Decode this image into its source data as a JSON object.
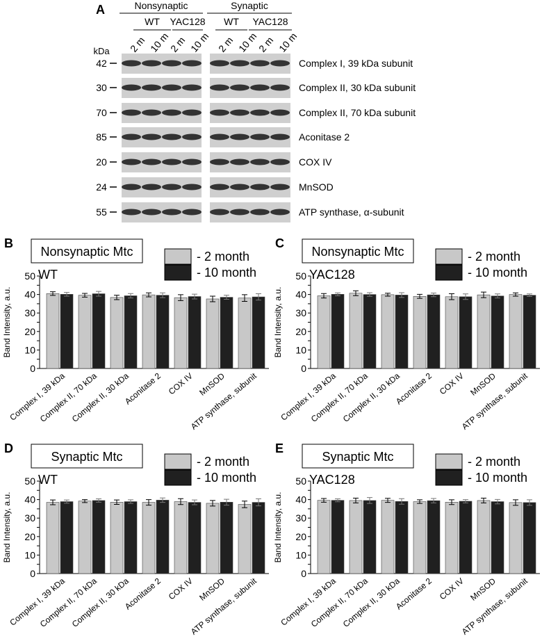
{
  "blot": {
    "panel": "A",
    "groups": [
      "Nonsynaptic",
      "Synaptic"
    ],
    "strains": [
      "WT",
      "YAC128",
      "WT",
      "YAC128"
    ],
    "lanes": [
      "2 m",
      "10 m",
      "2 m",
      "10 m",
      "2 m",
      "10 m",
      "2 m",
      "10 m"
    ],
    "kda_label": "kDa",
    "markers": [
      "42",
      "30",
      "70",
      "85",
      "20",
      "24",
      "55"
    ],
    "proteins": [
      "Complex I, 39 kDa subunit",
      "Complex II, 30 kDa subunit",
      "Complex II, 70 kDa subunit",
      "Aconitase 2",
      "COX IV",
      "MnSOD",
      "ATP synthase, α-subunit"
    ]
  },
  "chart_data": [
    {
      "type": "bar",
      "panel": "B",
      "title": "Nonsynaptic Mtc",
      "subtitle": "WT",
      "ylabel": "Band Intensity, a.u.",
      "categories": [
        "Complex I, 39 kDa",
        "Complex II, 70 kDa",
        "Complex II, 30 kDa",
        "Aconitase 2",
        "COX IV",
        "MnSOD",
        "ATP synthase, subunit"
      ],
      "series": [
        {
          "name": "- 2 month",
          "color": "#c8c8c8",
          "values": [
            40.5,
            39.6,
            38.4,
            39.8,
            38.3,
            37.6,
            38.1
          ],
          "errors": [
            1.0,
            1.0,
            1.2,
            1.1,
            1.6,
            1.5,
            1.8
          ]
        },
        {
          "name": "- 10 month",
          "color": "#202020",
          "values": [
            40.1,
            40.4,
            39.3,
            39.6,
            38.9,
            38.5,
            38.7
          ],
          "errors": [
            1.0,
            1.3,
            1.2,
            1.3,
            1.3,
            1.1,
            1.7
          ]
        }
      ],
      "ylim": [
        0,
        50
      ],
      "yticks": [
        0,
        5,
        10,
        15,
        20,
        25,
        30,
        35,
        40,
        45,
        50
      ]
    },
    {
      "type": "bar",
      "panel": "C",
      "title": "Nonsynaptic Mtc",
      "subtitle": "YAC128",
      "ylabel": "Band Intensity, a.u.",
      "categories": [
        "Complex I, 39 kDa",
        "Complex II, 70 kDa",
        "Complex II, 30 kDa",
        "Aconitase 2",
        "COX IV",
        "MnSOD",
        "ATP synthase, subunit"
      ],
      "series": [
        {
          "name": "- 2 month",
          "color": "#c8c8c8",
          "values": [
            39.3,
            40.7,
            39.9,
            39.0,
            38.8,
            39.8,
            40.0
          ],
          "errors": [
            1.2,
            1.3,
            0.8,
            1.1,
            1.6,
            1.5,
            0.9
          ]
        },
        {
          "name": "- 10 month",
          "color": "#202020",
          "values": [
            40.1,
            40.0,
            39.7,
            39.8,
            38.8,
            39.2,
            39.6
          ],
          "errors": [
            0.8,
            1.0,
            1.3,
            1.0,
            1.5,
            1.1,
            0.7
          ]
        }
      ],
      "ylim": [
        0,
        50
      ],
      "yticks": [
        0,
        5,
        10,
        15,
        20,
        25,
        30,
        35,
        40,
        45,
        50
      ]
    },
    {
      "type": "bar",
      "panel": "D",
      "title": "Synaptic Mtc",
      "subtitle": "WT",
      "ylabel": "Band Intensity, a.u.",
      "categories": [
        "Complex I, 39 kDa",
        "Complex II, 70 kDa",
        "Complex II, 30 kDa",
        "Aconitase 2",
        "COX IV",
        "MnSOD",
        "ATP synthase, subunit"
      ],
      "series": [
        {
          "name": "- 2 month",
          "color": "#c8c8c8",
          "values": [
            38.5,
            39.2,
            38.6,
            38.5,
            38.9,
            38.0,
            37.4
          ],
          "errors": [
            1.3,
            0.8,
            1.2,
            1.5,
            1.6,
            1.5,
            1.8
          ]
        },
        {
          "name": "- 10 month",
          "color": "#202020",
          "values": [
            38.9,
            39.5,
            38.9,
            39.7,
            38.5,
            38.6,
            38.5
          ],
          "errors": [
            0.9,
            0.9,
            1.0,
            1.2,
            1.3,
            1.6,
            1.9
          ]
        }
      ],
      "ylim": [
        0,
        50
      ],
      "yticks": [
        0,
        5,
        10,
        15,
        20,
        25,
        30,
        35,
        40,
        45,
        50
      ]
    },
    {
      "type": "bar",
      "panel": "E",
      "title": "Synaptic Mtc",
      "subtitle": "YAC128",
      "ylabel": "Band Intensity, a.u.",
      "categories": [
        "Complex I, 39 kDa",
        "Complex II, 70 kDa",
        "Complex II, 30 kDa",
        "Aconitase 2",
        "COX IV",
        "MnSOD",
        "ATP synthase, subunit"
      ],
      "series": [
        {
          "name": "- 2 month",
          "color": "#c8c8c8",
          "values": [
            39.6,
            39.5,
            39.6,
            38.9,
            38.6,
            39.5,
            38.4
          ],
          "errors": [
            1.0,
            1.3,
            1.1,
            1.0,
            1.3,
            1.3,
            1.5
          ]
        },
        {
          "name": "- 10 month",
          "color": "#202020",
          "values": [
            39.6,
            39.5,
            39.0,
            39.4,
            39.1,
            38.9,
            38.4
          ],
          "errors": [
            0.8,
            1.6,
            1.5,
            1.2,
            0.9,
            1.2,
            1.5
          ]
        }
      ],
      "ylim": [
        0,
        50
      ],
      "yticks": [
        0,
        5,
        10,
        15,
        20,
        25,
        30,
        35,
        40,
        45,
        50
      ]
    }
  ]
}
